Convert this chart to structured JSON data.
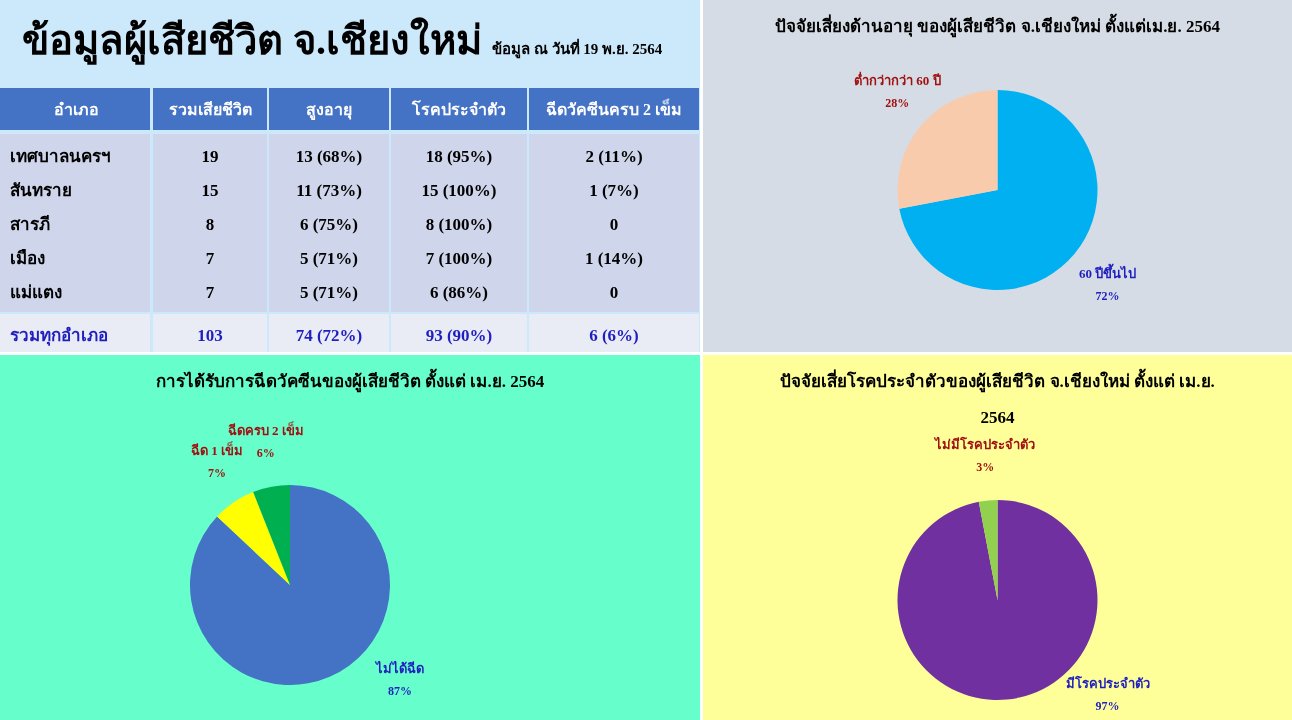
{
  "chart_data": [
    {
      "type": "other",
      "title": "ข้อมูลผู้เสียชีวิต จ.เชียงใหม่",
      "subtitle": "ข้อมูล ณ วันที่ 19 พ.ย. 2564",
      "ylabel": "อำเภอ",
      "categories": [
        "รวมเสียชีวิต",
        "สูงอายุ",
        "โรคประจำตัว",
        "ฉีดวัคซีนครบ 2 เข็ม"
      ],
      "y_categories": [
        "เทศบาลนครฯ",
        "สันทราย",
        "สารภี",
        "เมือง",
        "แม่แตง",
        "รวมทุกอำเภอ"
      ],
      "cell_labels": [
        [
          "19",
          "13 (68%)",
          "18 (95%)",
          "2 (11%)"
        ],
        [
          "15",
          "11 (73%)",
          "15 (100%)",
          "1 (7%)"
        ],
        [
          "8",
          "6 (75%)",
          "8 (100%)",
          "0"
        ],
        [
          "7",
          "5 (71%)",
          "7 (100%)",
          "1 (14%)"
        ],
        [
          "7",
          "5 (71%)",
          "6 (86%)",
          "0"
        ],
        [
          "103",
          "74 (72%)",
          "93 (90%)",
          "6 (6%)"
        ]
      ]
    },
    {
      "type": "pie",
      "title": "ปัจจัยเสี่ยงด้านอายุ ของผู้เสียชีวิต จ.เชียงใหม่  ตั้งแต่เม.ย. 2564",
      "categories": [
        "60 ปีขึ้นไป",
        "ต่ำกว่ากว่า 60 ปี"
      ],
      "values": [
        72,
        28
      ],
      "colors": [
        "#00b0f0",
        "#f8cbad"
      ],
      "value_labels": [
        "72%",
        "28%"
      ]
    },
    {
      "type": "pie",
      "title": "การได้รับการฉีดวัคซีนของผู้เสียชีวิต ตั้งแต่ เม.ย. 2564",
      "categories": [
        "ไม่ได้ฉีด",
        "ฉีด 1 เข็ม",
        "ฉีดครบ 2 เข็ม"
      ],
      "values": [
        87,
        7,
        6
      ],
      "colors": [
        "#4472c4",
        "#ffff00",
        "#00b050"
      ],
      "value_labels": [
        "87%",
        "7%",
        "6%"
      ]
    },
    {
      "type": "pie",
      "title": "ปัจจัยเสี่ยโรคประจำตัวของผู้เสียชีวิต จ.เชียงใหม่ ตั้งแต่ เม.ย. 2564",
      "categories": [
        "มีโรคประจำตัว",
        "ไม่มีโรคประจำตัว"
      ],
      "values": [
        97,
        3
      ],
      "colors": [
        "#7030a0",
        "#92d050"
      ],
      "value_labels": [
        "97%",
        "3%"
      ]
    }
  ]
}
